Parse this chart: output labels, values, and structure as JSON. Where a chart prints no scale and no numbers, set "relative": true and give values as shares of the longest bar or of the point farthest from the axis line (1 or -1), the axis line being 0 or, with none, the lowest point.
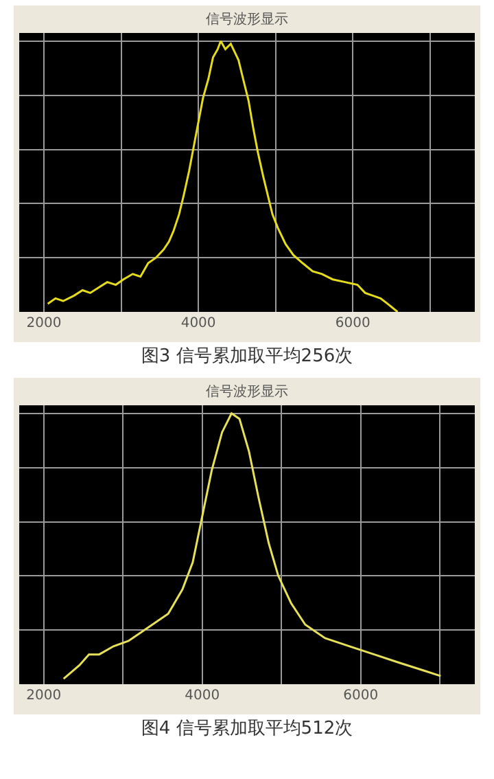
{
  "chart_data": [
    {
      "type": "line",
      "title": "信号波形显示",
      "annotations": [
        "图3 信号累加取平均256次"
      ],
      "relative": true,
      "xlim": [
        1680,
        7580
      ],
      "xticks": [
        2000,
        {
          "value": 3000,
          "label": null
        },
        4000,
        {
          "value": 5000,
          "label": null
        },
        6000,
        {
          "value": 7000,
          "label": null
        }
      ],
      "tick_labels": "x",
      "grid": true,
      "legend": false,
      "marker": "none",
      "line_style": "solid",
      "series": [
        {
          "color": "#e6dc1e",
          "x": [
            2050,
            2150,
            2250,
            2390,
            2500,
            2600,
            2710,
            2820,
            2930,
            3030,
            3150,
            3250,
            3350,
            3450,
            3550,
            3620,
            3680,
            3750,
            3810,
            3880,
            3940,
            4000,
            4060,
            4130,
            4190,
            4250,
            4290,
            4350,
            4420,
            4470,
            4520,
            4580,
            4650,
            4710,
            4770,
            4840,
            4900,
            4960,
            5030,
            5130,
            5230,
            5350,
            5480,
            5600,
            5740,
            5900,
            6060,
            6160,
            6260,
            6360,
            6450,
            6580
          ],
          "values": [
            0.03,
            0.05,
            0.04,
            0.06,
            0.08,
            0.07,
            0.09,
            0.11,
            0.1,
            0.12,
            0.14,
            0.13,
            0.18,
            0.2,
            0.23,
            0.26,
            0.3,
            0.36,
            0.43,
            0.52,
            0.61,
            0.7,
            0.79,
            0.86,
            0.94,
            0.97,
            1.0,
            0.97,
            0.99,
            0.96,
            0.93,
            0.86,
            0.78,
            0.68,
            0.59,
            0.5,
            0.43,
            0.36,
            0.31,
            0.25,
            0.21,
            0.18,
            0.15,
            0.14,
            0.12,
            0.11,
            0.1,
            0.07,
            0.06,
            0.05,
            0.03,
            0.0
          ]
        }
      ]
    },
    {
      "type": "line",
      "title": "信号波形显示",
      "annotations": [
        "图4 信号累加取平均512次"
      ],
      "relative": true,
      "xlim": [
        1690,
        7440
      ],
      "xticks": [
        2000,
        {
          "value": 3000,
          "label": null
        },
        4000,
        {
          "value": 5000,
          "label": null
        },
        6000,
        {
          "value": 7000,
          "label": null
        }
      ],
      "tick_labels": "x",
      "grid": true,
      "legend": false,
      "marker": "none",
      "line_style": "solid",
      "series": [
        {
          "color": "#e6e05a",
          "x": [
            2250,
            2450,
            2570,
            2700,
            2880,
            3070,
            3320,
            3570,
            3750,
            3880,
            4000,
            4120,
            4250,
            4370,
            4470,
            4590,
            4710,
            4840,
            4960,
            5120,
            5300,
            5550,
            5860,
            6170,
            6480,
            6800,
            7010
          ],
          "values": [
            0.02,
            0.07,
            0.11,
            0.11,
            0.14,
            0.16,
            0.21,
            0.26,
            0.35,
            0.45,
            0.62,
            0.79,
            0.93,
            1.0,
            0.98,
            0.86,
            0.69,
            0.52,
            0.4,
            0.3,
            0.22,
            0.17,
            0.14,
            0.11,
            0.08,
            0.05,
            0.03
          ]
        }
      ]
    }
  ]
}
